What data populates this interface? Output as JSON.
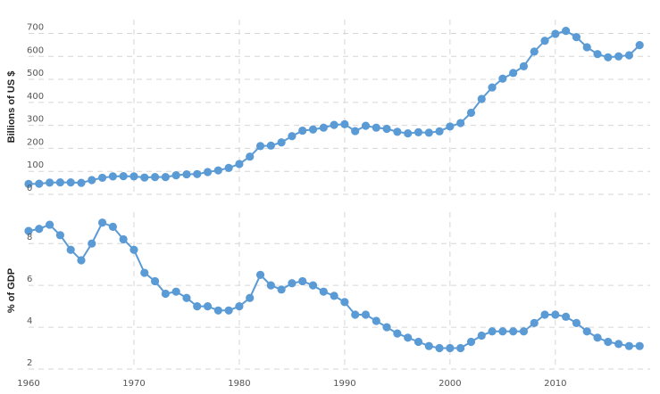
{
  "colors": {
    "series": "#5b9bd5",
    "grid": "#d6d6d6"
  },
  "chart_data": [
    {
      "type": "line",
      "panel": "top",
      "ylabel": "Billions of US $",
      "ylim": [
        0,
        760
      ],
      "yticks": [
        0,
        100,
        200,
        300,
        400,
        500,
        600,
        700
      ],
      "xlim": [
        1960,
        2019
      ],
      "grid": true,
      "series": [
        {
          "x": [
            1960,
            1961,
            1962,
            1963,
            1964,
            1965,
            1966,
            1967,
            1968,
            1969,
            1970,
            1971,
            1972,
            1973,
            1974,
            1975,
            1976,
            1977,
            1978,
            1979,
            1980,
            1981,
            1982,
            1983,
            1984,
            1985,
            1986,
            1987,
            1988,
            1989,
            1990,
            1991,
            1992,
            1993,
            1994,
            1995,
            1996,
            1997,
            1998,
            1999,
            2000,
            2001,
            2002,
            2003,
            2004,
            2005,
            2006,
            2007,
            2008,
            2009,
            2010,
            2011,
            2012,
            2013,
            2014,
            2015,
            2016,
            2017,
            2018
          ],
          "values": [
            45,
            46,
            51,
            52,
            52,
            50,
            62,
            72,
            78,
            79,
            78,
            73,
            75,
            75,
            83,
            87,
            88,
            97,
            104,
            115,
            132,
            164,
            210,
            212,
            226,
            253,
            277,
            282,
            290,
            302,
            305,
            275,
            298,
            290,
            285,
            272,
            265,
            270,
            268,
            274,
            295,
            310,
            355,
            415,
            465,
            503,
            528,
            557,
            621,
            668,
            698,
            711,
            684,
            640,
            610,
            596,
            600,
            605,
            649
          ]
        }
      ]
    },
    {
      "type": "line",
      "panel": "bottom",
      "ylabel": "% of GDP",
      "ylim": [
        2,
        9.5
      ],
      "yticks": [
        2,
        4,
        6,
        8
      ],
      "xlim": [
        1960,
        2019
      ],
      "grid": true,
      "xticks": [
        1960,
        1970,
        1980,
        1990,
        2000,
        2010
      ],
      "series": [
        {
          "x": [
            1960,
            1961,
            1962,
            1963,
            1964,
            1965,
            1966,
            1967,
            1968,
            1969,
            1970,
            1971,
            1972,
            1973,
            1974,
            1975,
            1976,
            1977,
            1978,
            1979,
            1980,
            1981,
            1982,
            1983,
            1984,
            1985,
            1986,
            1987,
            1988,
            1989,
            1990,
            1991,
            1992,
            1993,
            1994,
            1995,
            1996,
            1997,
            1998,
            1999,
            2000,
            2001,
            2002,
            2003,
            2004,
            2005,
            2006,
            2007,
            2008,
            2009,
            2010,
            2011,
            2012,
            2013,
            2014,
            2015,
            2016,
            2017,
            2018
          ],
          "values": [
            8.6,
            8.7,
            8.9,
            8.4,
            7.7,
            7.2,
            8.0,
            9.0,
            8.8,
            8.2,
            7.7,
            6.6,
            6.2,
            5.6,
            5.7,
            5.4,
            5.0,
            5.0,
            4.8,
            4.8,
            5.0,
            5.4,
            6.5,
            6.0,
            5.8,
            6.1,
            6.2,
            6.0,
            5.7,
            5.5,
            5.2,
            4.6,
            4.6,
            4.3,
            4.0,
            3.7,
            3.5,
            3.3,
            3.1,
            3.0,
            3.0,
            3.0,
            3.3,
            3.6,
            3.8,
            3.8,
            3.8,
            3.8,
            4.2,
            4.6,
            4.6,
            4.5,
            4.2,
            3.8,
            3.5,
            3.3,
            3.2,
            3.1,
            3.1
          ]
        }
      ]
    }
  ]
}
